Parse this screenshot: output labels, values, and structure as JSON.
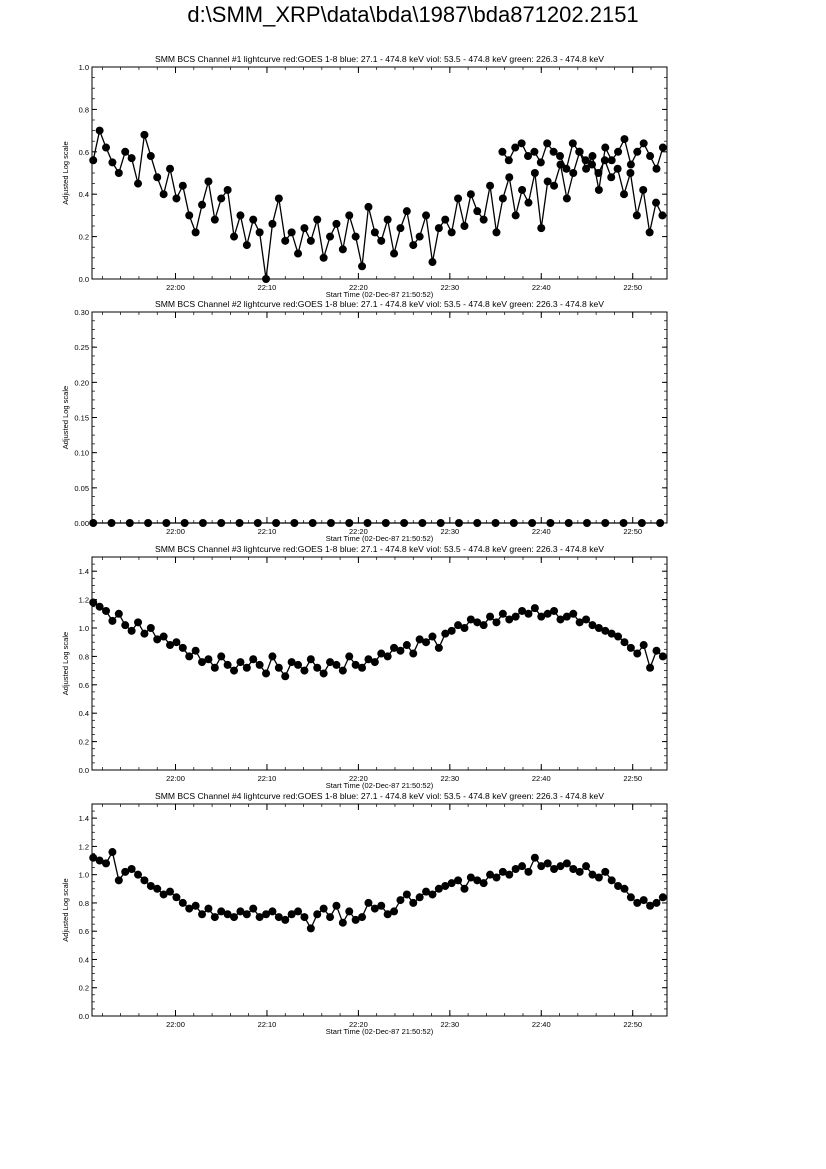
{
  "page": {
    "title": "d:\\SMM_XRP\\data\\bda\\1987\\bda871202.2151"
  },
  "chart_data": [
    {
      "type": "scatter",
      "title": "SMM BCS Channel #1 lightcurve  red:GOES 1-8  blue: 27.1 - 474.8 keV  viol: 53.5 - 474.8 keV  green: 226.3 - 474.8 keV",
      "xlabel": "Start Time (02-Dec-87 21:50:52)",
      "ylabel": "Adjusted Log scale",
      "xlim": [
        "21:50:52",
        "22:53:45"
      ],
      "ylim": [
        0,
        1.0
      ],
      "xtick_labels": [
        "22:00",
        "22:10",
        "22:20",
        "22:30",
        "22:40",
        "22:50"
      ],
      "ytick_labels": [
        "0.0",
        "0.2",
        "0.4",
        "0.6",
        "0.8",
        "1.0"
      ],
      "grid": false,
      "series": [
        {
          "color": "#000000",
          "x": [
            "21:51:00",
            "21:51:42",
            "21:52:24",
            "21:53:06",
            "21:53:48",
            "21:54:30",
            "21:55:12",
            "21:55:54",
            "21:56:36",
            "21:57:18",
            "21:58:00",
            "21:58:42",
            "21:59:24",
            "22:00:06",
            "22:00:48",
            "22:01:30",
            "22:02:12",
            "22:02:54",
            "22:03:36",
            "22:04:18",
            "22:05:00",
            "22:05:42",
            "22:06:24",
            "22:07:06",
            "22:07:48",
            "22:08:30",
            "22:09:12",
            "22:09:54",
            "22:10:36",
            "22:11:18",
            "22:12:00",
            "22:12:42",
            "22:13:24",
            "22:14:06",
            "22:14:48",
            "22:15:30",
            "22:16:12",
            "22:16:54",
            "22:17:36",
            "22:18:18",
            "22:19:00",
            "22:19:42",
            "22:20:24",
            "22:21:06",
            "22:21:48",
            "22:22:30",
            "22:23:12",
            "22:23:54",
            "22:24:36",
            "22:25:18",
            "22:26:00",
            "22:26:42",
            "22:27:24",
            "22:28:06",
            "22:28:48",
            "22:29:30",
            "22:30:12",
            "22:30:54",
            "22:31:36",
            "22:32:18",
            "22:33:00",
            "22:33:42",
            "22:34:24",
            "22:35:06",
            "22:35:48",
            "22:36:30",
            "22:37:12",
            "22:37:54",
            "22:38:36",
            "22:39:18",
            "22:40:00",
            "22:40:42",
            "22:41:24",
            "22:42:06",
            "22:42:48",
            "22:43:30",
            "22:44:12",
            "22:44:54",
            "22:45:36",
            "22:46:18",
            "22:47:00",
            "22:47:42",
            "22:48:24",
            "22:49:06",
            "22:49:48",
            "22:50:30",
            "22:51:12",
            "22:51:54",
            "22:52:36",
            "22:53:18"
          ],
          "y": [
            0.56,
            0.7,
            0.62,
            0.55,
            0.5,
            0.6,
            0.57,
            0.45,
            0.68,
            0.58,
            0.48,
            0.4,
            0.52,
            0.38,
            0.44,
            0.3,
            0.22,
            0.35,
            0.46,
            0.28,
            0.38,
            0.42,
            0.2,
            0.3,
            0.16,
            0.28,
            0.22,
            0.0,
            0.26,
            0.38,
            0.18,
            0.22,
            0.12,
            0.24,
            0.18,
            0.28,
            0.1,
            0.2,
            0.26,
            0.14,
            0.3,
            0.2,
            0.06,
            0.34,
            0.22,
            0.18,
            0.28,
            0.12,
            0.24,
            0.32,
            0.16,
            0.2,
            0.3,
            0.08,
            0.24,
            0.28,
            0.22,
            0.38,
            0.25,
            0.4,
            0.32,
            0.28,
            0.44,
            0.22,
            0.38,
            0.48,
            0.3,
            0.42,
            0.36,
            0.5,
            0.24,
            0.46,
            0.44,
            0.54,
            0.38,
            0.5,
            0.6,
            0.52,
            0.58,
            0.42,
            0.62,
            0.56,
            0.6,
            0.66,
            0.54,
            0.6,
            0.64,
            0.58,
            0.52,
            0.62
          ],
          "x2": [
            "22:35:45",
            "22:36:27",
            "22:37:09",
            "22:37:51",
            "22:38:33",
            "22:39:15",
            "22:39:57",
            "22:40:39",
            "22:41:21",
            "22:42:03",
            "22:42:45",
            "22:43:27",
            "22:44:09",
            "22:44:51",
            "22:45:33",
            "22:46:15",
            "22:46:57",
            "22:47:39",
            "22:48:21",
            "22:49:03",
            "22:49:45",
            "22:50:27",
            "22:51:09",
            "22:51:51",
            "22:52:33",
            "22:53:15"
          ],
          "y2": [
            0.6,
            0.56,
            0.62,
            0.64,
            0.58,
            0.6,
            0.55,
            0.64,
            0.6,
            0.58,
            0.52,
            0.64,
            0.6,
            0.56,
            0.54,
            0.5,
            0.56,
            0.48,
            0.52,
            0.4,
            0.5,
            0.3,
            0.42,
            0.22,
            0.36,
            0.3
          ]
        }
      ]
    },
    {
      "type": "scatter",
      "title": "SMM BCS Channel #2 lightcurve  red:GOES 1-8  blue: 27.1 - 474.8 keV  viol: 53.5 - 474.8 keV  green: 226.3 - 474.8 keV",
      "xlabel": "Start Time (02-Dec-87 21:50:52)",
      "ylabel": "Adjusted Log scale",
      "xlim": [
        "21:50:52",
        "22:53:45"
      ],
      "ylim": [
        0,
        0.3
      ],
      "xtick_labels": [
        "22:00",
        "22:10",
        "22:20",
        "22:30",
        "22:40",
        "22:50"
      ],
      "ytick_labels": [
        "0.00",
        "0.05",
        "0.10",
        "0.15",
        "0.20",
        "0.25",
        "0.30"
      ],
      "grid": false,
      "series": [
        {
          "color": "#000000",
          "x": [
            "21:51:00",
            "21:53:00",
            "21:55:00",
            "21:57:00",
            "21:59:00",
            "22:01:00",
            "22:03:00",
            "22:05:00",
            "22:07:00",
            "22:09:00",
            "22:11:00",
            "22:13:00",
            "22:15:00",
            "22:17:00",
            "22:19:00",
            "22:21:00",
            "22:23:00",
            "22:25:00",
            "22:27:00",
            "22:29:00",
            "22:31:00",
            "22:33:00",
            "22:35:00",
            "22:37:00",
            "22:39:00",
            "22:41:00",
            "22:43:00",
            "22:45:00",
            "22:47:00",
            "22:49:00",
            "22:51:00",
            "22:53:00"
          ],
          "y": [
            0.0,
            0.0,
            0.0,
            0.0,
            0.0,
            0.0,
            0.0,
            0.0,
            0.0,
            0.0,
            0.0,
            0.0,
            0.0,
            0.0,
            0.0,
            0.0,
            0.0,
            0.0,
            0.0,
            0.0,
            0.0,
            0.0,
            0.0,
            0.0,
            0.0,
            0.0,
            0.0,
            0.0,
            0.0,
            0.0,
            0.0,
            0.0
          ]
        }
      ]
    },
    {
      "type": "scatter",
      "title": "SMM BCS Channel #3 lightcurve  red:GOES 1-8  blue: 27.1 - 474.8 keV  viol: 53.5 - 474.8 keV  green: 226.3 - 474.8 keV",
      "xlabel": "Start Time (02-Dec-87 21:50:52)",
      "ylabel": "Adjusted Log scale",
      "xlim": [
        "21:50:52",
        "22:53:45"
      ],
      "ylim": [
        0,
        1.5
      ],
      "xtick_labels": [
        "22:00",
        "22:10",
        "22:20",
        "22:30",
        "22:40",
        "22:50"
      ],
      "ytick_labels": [
        "0.0",
        "0.2",
        "0.4",
        "0.6",
        "0.8",
        "1.0",
        "1.2",
        "1.4"
      ],
      "grid": false,
      "series": [
        {
          "color": "#000000",
          "x": [
            "21:51:00",
            "21:51:42",
            "21:52:24",
            "21:53:06",
            "21:53:48",
            "21:54:30",
            "21:55:12",
            "21:55:54",
            "21:56:36",
            "21:57:18",
            "21:58:00",
            "21:58:42",
            "21:59:24",
            "22:00:06",
            "22:00:48",
            "22:01:30",
            "22:02:12",
            "22:02:54",
            "22:03:36",
            "22:04:18",
            "22:05:00",
            "22:05:42",
            "22:06:24",
            "22:07:06",
            "22:07:48",
            "22:08:30",
            "22:09:12",
            "22:09:54",
            "22:10:36",
            "22:11:18",
            "22:12:00",
            "22:12:42",
            "22:13:24",
            "22:14:06",
            "22:14:48",
            "22:15:30",
            "22:16:12",
            "22:16:54",
            "22:17:36",
            "22:18:18",
            "22:19:00",
            "22:19:42",
            "22:20:24",
            "22:21:06",
            "22:21:48",
            "22:22:30",
            "22:23:12",
            "22:23:54",
            "22:24:36",
            "22:25:18",
            "22:26:00",
            "22:26:42",
            "22:27:24",
            "22:28:06",
            "22:28:48",
            "22:29:30",
            "22:30:12",
            "22:30:54",
            "22:31:36",
            "22:32:18",
            "22:33:00",
            "22:33:42",
            "22:34:24",
            "22:35:06",
            "22:35:48",
            "22:36:30",
            "22:37:12",
            "22:37:54",
            "22:38:36",
            "22:39:18",
            "22:40:00",
            "22:40:42",
            "22:41:24",
            "22:42:06",
            "22:42:48",
            "22:43:30",
            "22:44:12",
            "22:44:54",
            "22:45:36",
            "22:46:18",
            "22:47:00",
            "22:47:42",
            "22:48:24",
            "22:49:06",
            "22:49:48",
            "22:50:30",
            "22:51:12",
            "22:51:54",
            "22:52:36",
            "22:53:18"
          ],
          "y": [
            1.18,
            1.15,
            1.12,
            1.05,
            1.1,
            1.02,
            0.98,
            1.04,
            0.96,
            1.0,
            0.92,
            0.94,
            0.88,
            0.9,
            0.86,
            0.8,
            0.84,
            0.76,
            0.78,
            0.72,
            0.8,
            0.74,
            0.7,
            0.76,
            0.72,
            0.78,
            0.74,
            0.68,
            0.8,
            0.72,
            0.66,
            0.76,
            0.74,
            0.7,
            0.78,
            0.72,
            0.68,
            0.76,
            0.74,
            0.7,
            0.8,
            0.74,
            0.72,
            0.78,
            0.76,
            0.82,
            0.8,
            0.86,
            0.84,
            0.88,
            0.82,
            0.92,
            0.9,
            0.94,
            0.86,
            0.96,
            0.98,
            1.02,
            1.0,
            1.06,
            1.04,
            1.02,
            1.08,
            1.04,
            1.1,
            1.06,
            1.08,
            1.12,
            1.1,
            1.14,
            1.08,
            1.1,
            1.12,
            1.06,
            1.08,
            1.1,
            1.04,
            1.06,
            1.02,
            1.0,
            0.98,
            0.96,
            0.94,
            0.9,
            0.86,
            0.82,
            0.88,
            0.72,
            0.84,
            0.8
          ]
        }
      ]
    },
    {
      "type": "scatter",
      "title": "SMM BCS Channel #4 lightcurve  red:GOES 1-8  blue: 27.1 - 474.8 keV  viol: 53.5 - 474.8 keV  green: 226.3 - 474.8 keV",
      "xlabel": "Start Time (02-Dec-87 21:50:52)",
      "ylabel": "Adjusted Log scale",
      "xlim": [
        "21:50:52",
        "22:53:45"
      ],
      "ylim": [
        0,
        1.5
      ],
      "xtick_labels": [
        "22:00",
        "22:10",
        "22:20",
        "22:30",
        "22:40",
        "22:50"
      ],
      "ytick_labels": [
        "0.0",
        "0.2",
        "0.4",
        "0.6",
        "0.8",
        "1.0",
        "1.2",
        "1.4"
      ],
      "grid": false,
      "series": [
        {
          "color": "#000000",
          "x": [
            "21:51:00",
            "21:51:42",
            "21:52:24",
            "21:53:06",
            "21:53:48",
            "21:54:30",
            "21:55:12",
            "21:55:54",
            "21:56:36",
            "21:57:18",
            "21:58:00",
            "21:58:42",
            "21:59:24",
            "22:00:06",
            "22:00:48",
            "22:01:30",
            "22:02:12",
            "22:02:54",
            "22:03:36",
            "22:04:18",
            "22:05:00",
            "22:05:42",
            "22:06:24",
            "22:07:06",
            "22:07:48",
            "22:08:30",
            "22:09:12",
            "22:09:54",
            "22:10:36",
            "22:11:18",
            "22:12:00",
            "22:12:42",
            "22:13:24",
            "22:14:06",
            "22:14:48",
            "22:15:30",
            "22:16:12",
            "22:16:54",
            "22:17:36",
            "22:18:18",
            "22:19:00",
            "22:19:42",
            "22:20:24",
            "22:21:06",
            "22:21:48",
            "22:22:30",
            "22:23:12",
            "22:23:54",
            "22:24:36",
            "22:25:18",
            "22:26:00",
            "22:26:42",
            "22:27:24",
            "22:28:06",
            "22:28:48",
            "22:29:30",
            "22:30:12",
            "22:30:54",
            "22:31:36",
            "22:32:18",
            "22:33:00",
            "22:33:42",
            "22:34:24",
            "22:35:06",
            "22:35:48",
            "22:36:30",
            "22:37:12",
            "22:37:54",
            "22:38:36",
            "22:39:18",
            "22:40:00",
            "22:40:42",
            "22:41:24",
            "22:42:06",
            "22:42:48",
            "22:43:30",
            "22:44:12",
            "22:44:54",
            "22:45:36",
            "22:46:18",
            "22:47:00",
            "22:47:42",
            "22:48:24",
            "22:49:06",
            "22:49:48",
            "22:50:30",
            "22:51:12",
            "22:51:54",
            "22:52:36",
            "22:53:18"
          ],
          "y": [
            1.12,
            1.1,
            1.08,
            1.16,
            0.96,
            1.02,
            1.04,
            1.0,
            0.96,
            0.92,
            0.9,
            0.86,
            0.88,
            0.84,
            0.8,
            0.76,
            0.78,
            0.72,
            0.76,
            0.7,
            0.74,
            0.72,
            0.7,
            0.74,
            0.72,
            0.76,
            0.7,
            0.72,
            0.74,
            0.7,
            0.68,
            0.72,
            0.74,
            0.7,
            0.62,
            0.72,
            0.76,
            0.7,
            0.78,
            0.66,
            0.74,
            0.68,
            0.7,
            0.8,
            0.76,
            0.78,
            0.72,
            0.74,
            0.82,
            0.86,
            0.8,
            0.84,
            0.88,
            0.86,
            0.9,
            0.92,
            0.94,
            0.96,
            0.9,
            0.98,
            0.96,
            0.94,
            1.0,
            0.98,
            1.02,
            1.0,
            1.04,
            1.06,
            1.02,
            1.12,
            1.06,
            1.08,
            1.04,
            1.06,
            1.08,
            1.04,
            1.02,
            1.06,
            1.0,
            0.98,
            1.02,
            0.96,
            0.92,
            0.9,
            0.84,
            0.8,
            0.82,
            0.78,
            0.8,
            0.84
          ]
        }
      ]
    }
  ]
}
